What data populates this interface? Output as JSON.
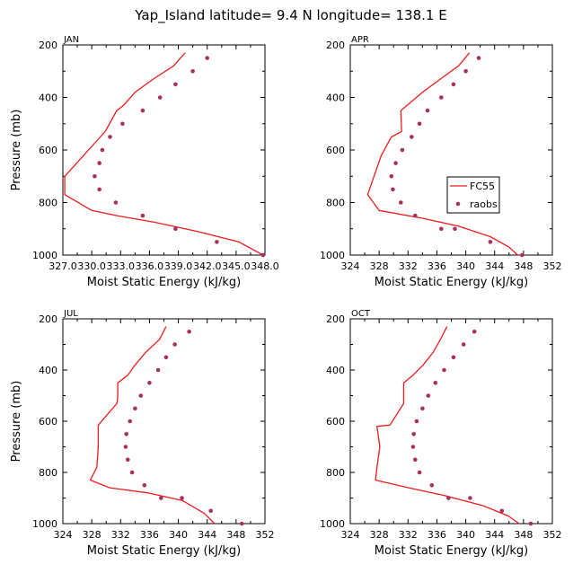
{
  "figure_title": "Yap_Island  latitude= 9.4 N longitude= 138.1 E",
  "legend": {
    "model_label": "FC55",
    "obs_label": "raobs"
  },
  "colors": {
    "model_line": "#ee1c1c",
    "obs_marker": "#a83060",
    "axes": "#000000"
  },
  "chart_data": [
    {
      "type": "line",
      "title": "JAN",
      "xlabel": "Moist Static Energy (kJ/kg)",
      "ylabel": "Pressure (mb)",
      "xlim": [
        327.0,
        348.0
      ],
      "ylim": [
        1000,
        200
      ],
      "xticks": [
        327.0,
        330.0,
        333.0,
        336.0,
        339.0,
        342.0,
        345.0,
        348.0
      ],
      "xtick_labels": [
        "327.0",
        "330.0",
        "333.0",
        "336.0",
        "339.0",
        "342.0",
        "345.0",
        "348.0"
      ],
      "yticks": [
        200,
        400,
        600,
        800,
        1000
      ],
      "ytick_labels": [
        "200",
        "400",
        "600",
        "800",
        "1000"
      ],
      "series": [
        {
          "name": "FC55",
          "style": "line",
          "x": [
            339.7,
            338.5,
            336.4,
            334.5,
            333.3,
            332.6,
            331.4,
            327.2,
            327.2,
            330.0,
            332.6,
            336.5,
            341.0,
            345.3,
            347.8
          ],
          "y": [
            230,
            280,
            330,
            380,
            430,
            450,
            530,
            700,
            770,
            830,
            850,
            875,
            910,
            950,
            1000
          ]
        },
        {
          "name": "raobs",
          "style": "marker",
          "x": [
            342.0,
            340.5,
            338.7,
            337.1,
            335.3,
            333.2,
            331.9,
            331.1,
            330.8,
            330.3,
            330.8,
            332.5,
            335.3,
            338.7,
            343.0,
            347.8
          ],
          "y": [
            250,
            300,
            350,
            400,
            450,
            500,
            550,
            600,
            650,
            700,
            750,
            800,
            850,
            900,
            950,
            1000
          ]
        }
      ]
    },
    {
      "type": "line",
      "title": "APR",
      "xlabel": "Moist Static Energy (kJ/kg)",
      "ylabel": "Pressure (mb)",
      "xlim": [
        324,
        352
      ],
      "ylim": [
        1000,
        200
      ],
      "xticks": [
        324,
        328,
        332,
        336,
        340,
        344,
        348,
        352
      ],
      "xtick_labels": [
        "324",
        "328",
        "332",
        "336",
        "340",
        "344",
        "348",
        "352"
      ],
      "yticks": [
        200,
        400,
        600,
        800,
        1000
      ],
      "ytick_labels": [
        "200",
        "400",
        "600",
        "800",
        "1000"
      ],
      "series": [
        {
          "name": "FC55",
          "style": "line",
          "x": [
            340.5,
            339.0,
            336.5,
            334.0,
            332.3,
            331.0,
            331.1,
            329.7,
            328.3,
            326.4,
            328.0,
            334.0,
            339.0,
            343.4,
            346.0,
            347.2
          ],
          "y": [
            230,
            280,
            330,
            380,
            420,
            450,
            530,
            550,
            620,
            770,
            830,
            860,
            890,
            930,
            970,
            1000
          ]
        },
        {
          "name": "raobs",
          "style": "marker",
          "x": [
            341.8,
            340.0,
            338.3,
            336.6,
            334.7,
            333.6,
            332.5,
            331.2,
            330.3,
            329.7,
            329.9,
            331.0,
            333.0,
            336.6,
            338.5,
            343.4,
            347.8
          ],
          "y": [
            250,
            300,
            350,
            400,
            450,
            500,
            550,
            600,
            650,
            700,
            750,
            800,
            850,
            900,
            900,
            950,
            1000
          ]
        }
      ]
    },
    {
      "type": "line",
      "title": "JUL",
      "xlabel": "Moist Static Energy (kJ/kg)",
      "ylabel": "Pressure (mb)",
      "xlim": [
        324,
        352
      ],
      "ylim": [
        1000,
        200
      ],
      "xticks": [
        324,
        328,
        332,
        336,
        340,
        344,
        348,
        352
      ],
      "xtick_labels": [
        "324",
        "328",
        "332",
        "336",
        "340",
        "344",
        "348",
        "352"
      ],
      "yticks": [
        200,
        400,
        600,
        800,
        1000
      ],
      "ytick_labels": [
        "200",
        "400",
        "600",
        "800",
        "1000"
      ],
      "series": [
        {
          "name": "FC55",
          "style": "line",
          "x": [
            338.3,
            337.4,
            335.5,
            334.0,
            333.0,
            331.6,
            331.6,
            331.5,
            328.9,
            328.9,
            328.7,
            327.8,
            330.5,
            335.8,
            340.6,
            343.6,
            345.0
          ],
          "y": [
            230,
            280,
            330,
            380,
            420,
            450,
            500,
            530,
            615,
            700,
            780,
            830,
            860,
            880,
            910,
            960,
            1000
          ]
        },
        {
          "name": "raobs",
          "style": "marker",
          "x": [
            341.5,
            339.5,
            338.3,
            337.2,
            336.0,
            334.8,
            334.0,
            333.3,
            332.8,
            332.7,
            333.0,
            333.6,
            335.3,
            337.6,
            340.5,
            344.5,
            348.8
          ],
          "y": [
            250,
            300,
            350,
            400,
            450,
            500,
            550,
            600,
            650,
            700,
            750,
            800,
            850,
            900,
            900,
            950,
            1000
          ]
        }
      ]
    },
    {
      "type": "line",
      "title": "OCT",
      "xlabel": "Moist Static Energy (kJ/kg)",
      "ylabel": "Pressure (mb)",
      "xlim": [
        324,
        352
      ],
      "ylim": [
        1000,
        200
      ],
      "xticks": [
        324,
        328,
        332,
        336,
        340,
        344,
        348,
        352
      ],
      "xtick_labels": [
        "324",
        "328",
        "332",
        "336",
        "340",
        "344",
        "348",
        "352"
      ],
      "yticks": [
        200,
        400,
        600,
        800,
        1000
      ],
      "ytick_labels": [
        "200",
        "400",
        "600",
        "800",
        "1000"
      ],
      "series": [
        {
          "name": "FC55",
          "style": "line",
          "x": [
            337.4,
            336.5,
            335.5,
            334.1,
            332.7,
            331.4,
            331.4,
            331.4,
            329.5,
            327.7,
            328.1,
            327.7,
            327.5,
            332.1,
            337.0,
            342.4,
            345.9,
            347.4
          ],
          "y": [
            230,
            280,
            330,
            380,
            420,
            450,
            500,
            530,
            615,
            620,
            700,
            780,
            830,
            860,
            890,
            930,
            970,
            1000
          ]
        },
        {
          "name": "raobs",
          "style": "marker",
          "x": [
            341.2,
            339.7,
            338.3,
            337.0,
            335.8,
            334.8,
            334.0,
            333.2,
            332.8,
            332.7,
            333.0,
            333.6,
            335.3,
            337.6,
            340.6,
            345.0,
            349.0
          ],
          "y": [
            250,
            300,
            350,
            400,
            450,
            500,
            550,
            600,
            650,
            700,
            750,
            800,
            850,
            900,
            900,
            950,
            1000
          ]
        }
      ]
    }
  ]
}
